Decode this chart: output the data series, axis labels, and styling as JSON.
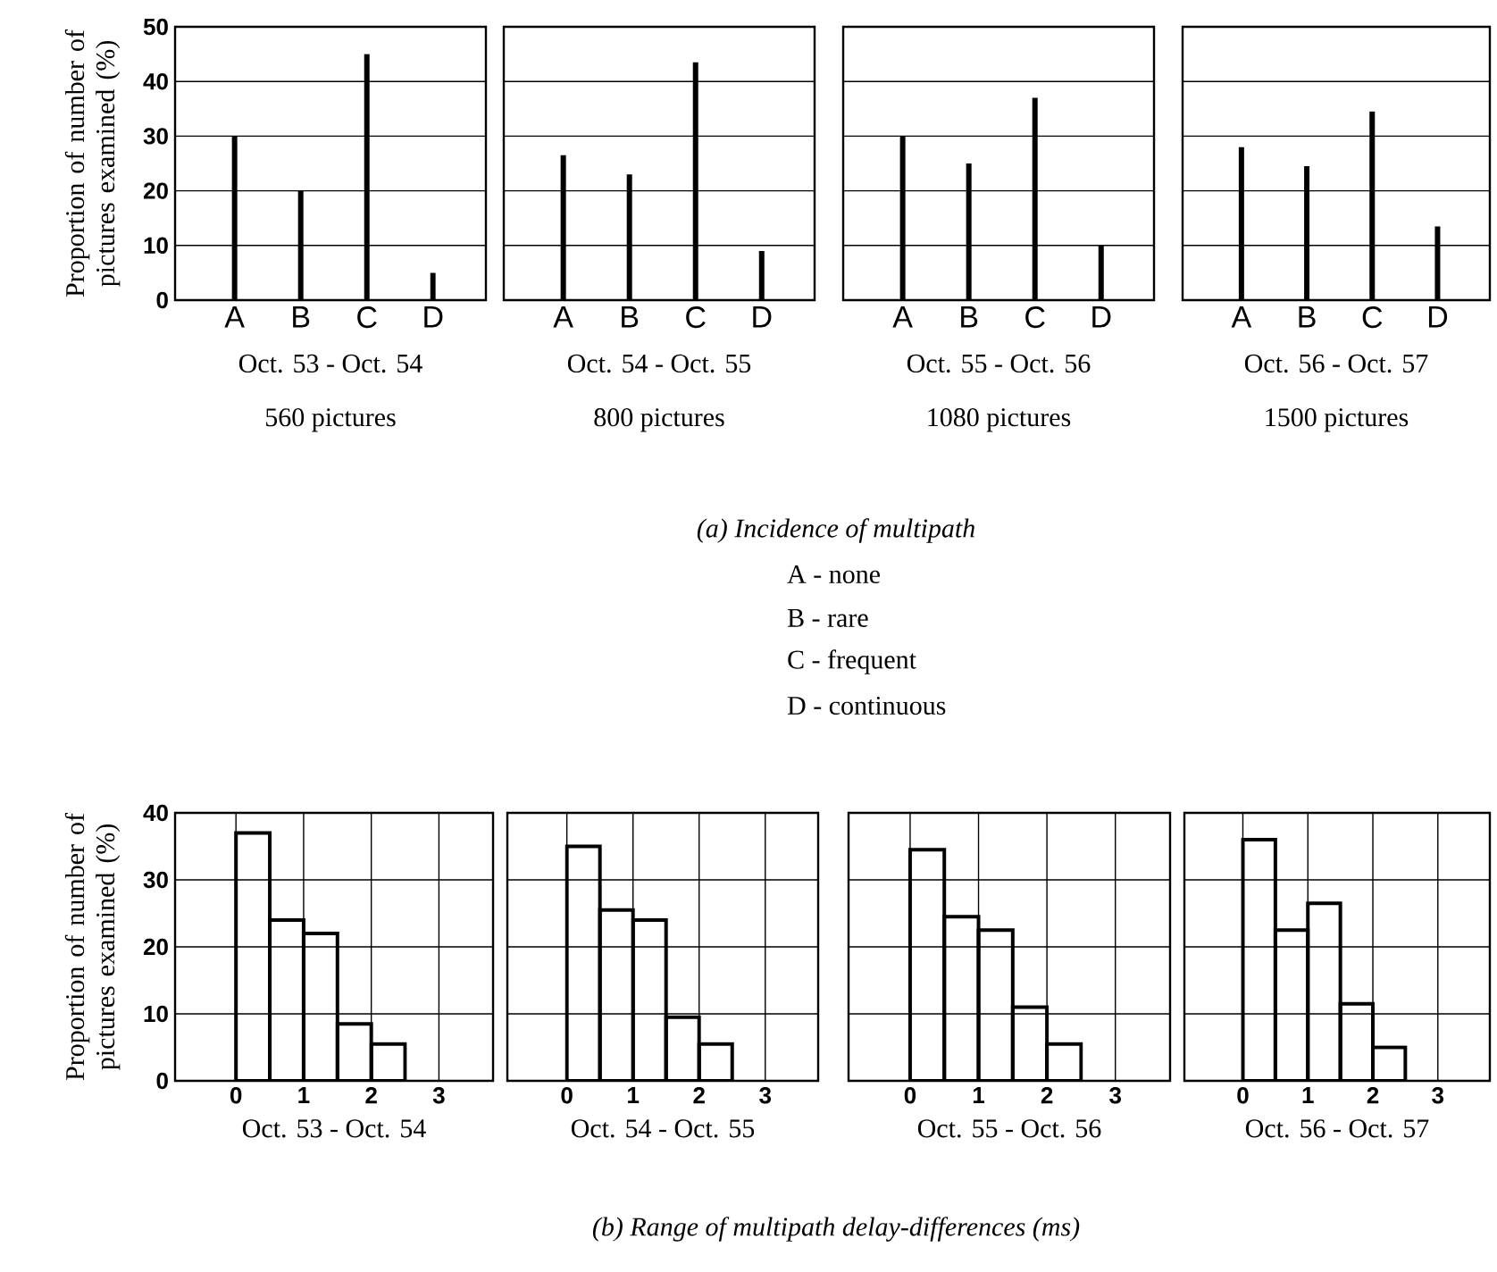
{
  "chart_data": [
    {
      "type": "bar",
      "categories": [
        "A",
        "B",
        "C",
        "D"
      ],
      "values": [
        30,
        20,
        45,
        5
      ],
      "color": "#000000",
      "ylim": [
        0,
        50
      ],
      "yticks": [
        0,
        10,
        20,
        30,
        40,
        50
      ],
      "grid": "y",
      "ylabel": "Proportion of number of pictures examined (%)",
      "xlabel": "Oct. 53 - Oct. 54",
      "subtitle": "560 pictures",
      "annotations": [
        "(a) Incidence of multipath",
        "A - none",
        "B - rare",
        "C - frequent",
        "D - continuous"
      ]
    },
    {
      "type": "bar",
      "categories": [
        "A",
        "B",
        "C",
        "D"
      ],
      "values": [
        26.5,
        23,
        43.5,
        9
      ],
      "color": "#000000",
      "ylim": [
        0,
        50
      ],
      "yticks": [
        0,
        10,
        20,
        30,
        40,
        50
      ],
      "grid": "y",
      "tick_labels": "x",
      "xlabel": "Oct. 54 - Oct. 55",
      "subtitle": "800 pictures"
    },
    {
      "type": "bar",
      "categories": [
        "A",
        "B",
        "C",
        "D"
      ],
      "values": [
        30,
        25,
        37,
        10
      ],
      "color": "#000000",
      "ylim": [
        0,
        50
      ],
      "yticks": [
        0,
        10,
        20,
        30,
        40,
        50
      ],
      "grid": "y",
      "tick_labels": "x",
      "xlabel": "Oct. 55 - Oct. 56",
      "subtitle": "1080 pictures"
    },
    {
      "type": "bar",
      "categories": [
        "A",
        "B",
        "C",
        "D"
      ],
      "values": [
        28,
        24.5,
        34.5,
        13.5
      ],
      "color": "#000000",
      "ylim": [
        0,
        50
      ],
      "yticks": [
        0,
        10,
        20,
        30,
        40,
        50
      ],
      "grid": "y",
      "tick_labels": "x",
      "xlabel": "Oct. 56 - Oct. 57",
      "subtitle": "1500 pictures"
    },
    {
      "type": "histogram",
      "bins": [
        0,
        0.5,
        1,
        1.5,
        2,
        2.5
      ],
      "values": [
        37,
        24,
        22,
        8.5,
        5.5
      ],
      "color": "#000000",
      "xlim": [
        -0.9,
        3.8
      ],
      "xticks": [
        0,
        1,
        2,
        3
      ],
      "ylim": [
        0,
        40
      ],
      "yticks": [
        0,
        10,
        20,
        30,
        40
      ],
      "grid": true,
      "ylabel": "Proportion of number of pictures examined (%)",
      "xlabel": "Oct. 53 - Oct. 54",
      "annotations": [
        "(b) Range of multipath delay-differences (ms)"
      ]
    },
    {
      "type": "histogram",
      "bins": [
        0,
        0.5,
        1,
        1.5,
        2,
        2.5
      ],
      "values": [
        35,
        25.5,
        24,
        9.5,
        5.5
      ],
      "color": "#000000",
      "xlim": [
        -0.9,
        3.8
      ],
      "xticks": [
        0,
        1,
        2,
        3
      ],
      "ylim": [
        0,
        40
      ],
      "yticks": [
        0,
        10,
        20,
        30,
        40
      ],
      "grid": true,
      "tick_labels": "x",
      "xlabel": "Oct. 54 - Oct. 55"
    },
    {
      "type": "histogram",
      "bins": [
        0,
        0.5,
        1,
        1.5,
        2,
        2.5
      ],
      "values": [
        34.5,
        24.5,
        22.5,
        11,
        5.5
      ],
      "color": "#000000",
      "xlim": [
        -0.9,
        3.8
      ],
      "xticks": [
        0,
        1,
        2,
        3
      ],
      "ylim": [
        0,
        40
      ],
      "yticks": [
        0,
        10,
        20,
        30,
        40
      ],
      "grid": true,
      "tick_labels": "x",
      "xlabel": "Oct. 55 - Oct. 56"
    },
    {
      "type": "histogram",
      "bins": [
        0,
        0.5,
        1,
        1.5,
        2,
        2.5
      ],
      "values": [
        36,
        22.5,
        26.5,
        11.5,
        5
      ],
      "color": "#000000",
      "xlim": [
        -0.9,
        3.8
      ],
      "xticks": [
        0,
        1,
        2,
        3
      ],
      "ylim": [
        0,
        40
      ],
      "yticks": [
        0,
        10,
        20,
        30,
        40
      ],
      "grid": true,
      "tick_labels": "x",
      "xlabel": "Oct. 56 - Oct. 57"
    }
  ]
}
